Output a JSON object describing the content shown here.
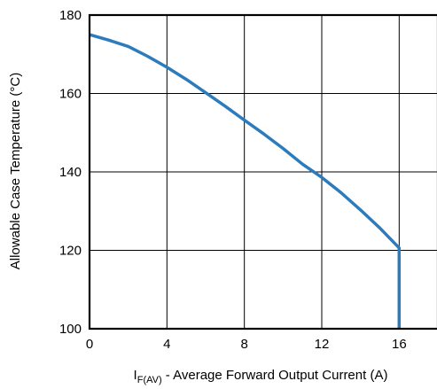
{
  "chart_data": {
    "type": "line",
    "xlabel_main": "I",
    "xlabel_sub": "F(AV)",
    "xlabel_rest": " - Average Forward Output Current (A)",
    "ylabel": "Allowable Case Temperature (°C)",
    "xlim": [
      0,
      18
    ],
    "ylim": [
      100,
      180
    ],
    "grid": true,
    "xticks": [
      0,
      4,
      8,
      12,
      16
    ],
    "yticks": [
      100,
      120,
      140,
      160,
      180
    ],
    "xtick_labels": [
      "0",
      "4",
      "8",
      "12",
      "16"
    ],
    "ytick_labels": [
      "100",
      "120",
      "140",
      "160",
      "180"
    ],
    "series": [
      {
        "color": "#2b7bbd",
        "points": [
          [
            0,
            175
          ],
          [
            1,
            173.6
          ],
          [
            2,
            172
          ],
          [
            3,
            169.5
          ],
          [
            4,
            166.7
          ],
          [
            5,
            163.6
          ],
          [
            6,
            160.2
          ],
          [
            7,
            156.8
          ],
          [
            8,
            153.2
          ],
          [
            9,
            149.7
          ],
          [
            10,
            146
          ],
          [
            11,
            142
          ],
          [
            12,
            138.6
          ],
          [
            13,
            134.7
          ],
          [
            14,
            130.3
          ],
          [
            15,
            125.7
          ],
          [
            16,
            120.6
          ],
          [
            16,
            100
          ]
        ]
      }
    ]
  }
}
